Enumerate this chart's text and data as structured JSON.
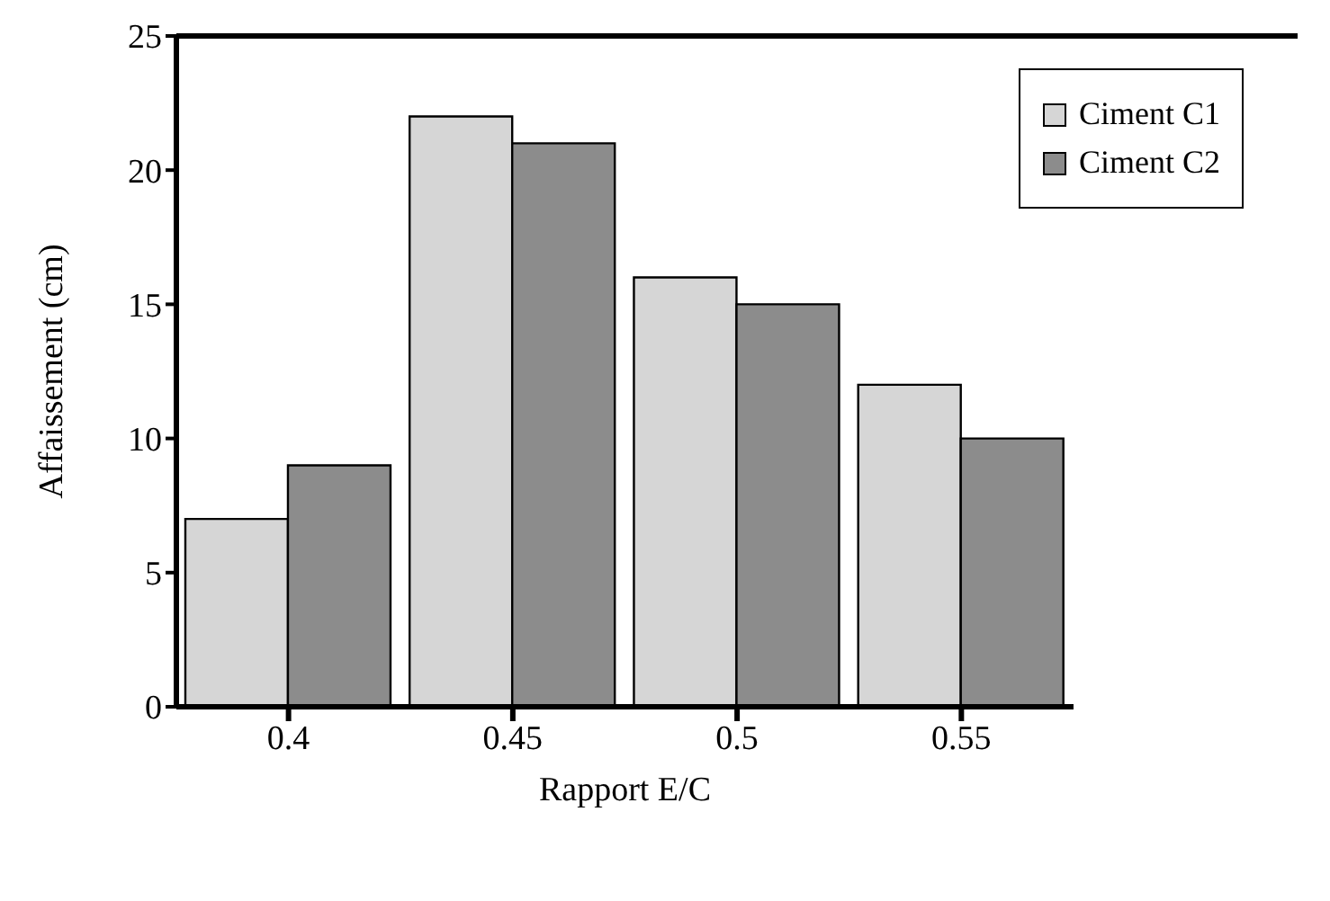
{
  "chart_data": {
    "type": "bar",
    "xlabel": "Rapport E/C",
    "ylabel": "Affaissement (cm)",
    "categories": [
      "0.4",
      "0.45",
      "0.5",
      "0.55"
    ],
    "series": [
      {
        "name": "Ciment C1",
        "color": "#d6d6d6",
        "values": [
          7,
          22,
          16,
          12
        ]
      },
      {
        "name": "Ciment C2",
        "color": "#8c8c8c",
        "values": [
          9,
          21,
          15,
          10
        ]
      }
    ],
    "ylim": [
      0,
      25
    ],
    "yticks": [
      0,
      5,
      10,
      15,
      20,
      25
    ],
    "legend": "top right"
  }
}
